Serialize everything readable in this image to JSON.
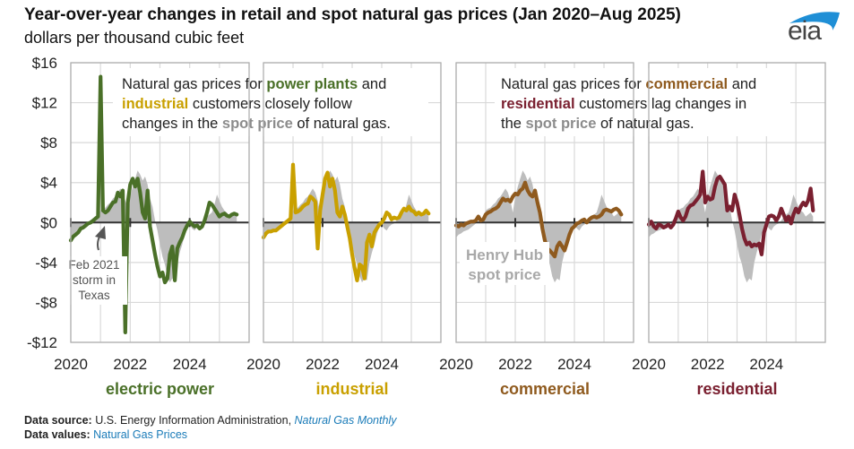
{
  "header": {
    "title": "Year-over-year changes in retail and spot natural gas prices (Jan 2020–Aug 2025)",
    "subtitle": "dollars per thousand cubic feet",
    "logo_text": "eia"
  },
  "colors": {
    "electric_power": "#4a7028",
    "industrial": "#c9a000",
    "commercial": "#8f5a1e",
    "residential": "#7a2030",
    "spot_area": "#bdbdbd",
    "spot_label": "#a8a8a8",
    "grid": "#d9d9d9",
    "axis": "#333333",
    "link": "#1a7bb8"
  },
  "annotations": {
    "left_box": {
      "line1_pre": "Natural gas prices for ",
      "line1_em": "power plants",
      "line1_post": " and",
      "line2_em": "industrial",
      "line2_post": " customers closely follow",
      "line3_pre": "changes in the ",
      "line3_em": "spot price",
      "line3_post": " of natural gas."
    },
    "right_box": {
      "line1_pre": "Natural gas prices for ",
      "line1_em": "commercial",
      "line1_post": " and",
      "line2_em": "residential",
      "line2_post": " customers lag changes in",
      "line3_pre": "the ",
      "line3_em": "spot price",
      "line3_post": " of natural gas."
    },
    "storm": [
      "Feb 2021",
      "storm in",
      "Texas"
    ],
    "spot_label": [
      "Henry Hub",
      "spot price"
    ]
  },
  "footer": {
    "source_label": "Data source:",
    "source_text": " U.S. Energy Information Administration, ",
    "source_link": "Natural Gas Monthly",
    "values_label": "Data values:",
    "values_link": "Natural Gas Prices"
  },
  "chart_data": {
    "type": "line",
    "title": "Year-over-year changes in retail and spot natural gas prices (Jan 2020–Aug 2025)",
    "ylabel": "dollars per thousand cubic feet",
    "ylim": [
      -12,
      16
    ],
    "yticks": [
      16,
      12,
      8,
      4,
      0,
      -4,
      -8,
      -12
    ],
    "ytick_labels": [
      "$16",
      "$12",
      "$8",
      "$4",
      "$0",
      "-$4",
      "-$8",
      "-$12"
    ],
    "xlim": [
      "2020-01",
      "2025-08"
    ],
    "xticks": [
      2020,
      2022,
      2024
    ],
    "xtick_labels": [
      "2020",
      "2022",
      "2024"
    ],
    "grid": true,
    "start_month": "2020-01",
    "months": 68,
    "spot_series": {
      "name": "Henry Hub spot price",
      "values": [
        -1.5,
        -1.2,
        -1.1,
        -0.9,
        -0.8,
        -0.7,
        -0.5,
        -0.3,
        -0.1,
        0.1,
        0.3,
        0.6,
        1.2,
        1.4,
        1.5,
        1.8,
        2.0,
        2.4,
        2.6,
        3.0,
        3.4,
        3.0,
        2.2,
        1.0,
        2.6,
        3.6,
        4.4,
        5.2,
        4.8,
        4.2,
        4.6,
        3.8,
        2.4,
        1.6,
        0.2,
        -0.8,
        -2.2,
        -3.4,
        -4.2,
        -5.4,
        -6.0,
        -5.6,
        -5.8,
        -4.0,
        -3.0,
        -2.2,
        -1.2,
        -0.4,
        -0.2,
        -0.6,
        -0.8,
        -0.4,
        -0.2,
        -0.1,
        0.2,
        0.6,
        0.8,
        1.0,
        1.8,
        2.8,
        2.2,
        1.6,
        1.2,
        1.0,
        0.6,
        0.8,
        1.0,
        0.6
      ]
    },
    "series": [
      {
        "name": "electric power",
        "color": "#4a7028",
        "values": [
          -1.8,
          -1.4,
          -1.2,
          -1.0,
          -0.6,
          -0.5,
          -0.3,
          -0.1,
          0.0,
          0.2,
          0.4,
          0.6,
          14.6,
          1.2,
          1.0,
          1.2,
          1.6,
          2.0,
          2.1,
          3.0,
          2.6,
          3.2,
          -11.0,
          2.0,
          3.8,
          4.4,
          3.6,
          4.4,
          3.0,
          1.0,
          0.4,
          3.2,
          -0.4,
          -1.8,
          -3.2,
          -4.4,
          -5.4,
          -5.0,
          -6.0,
          -5.6,
          -3.2,
          -2.4,
          -5.8,
          -2.6,
          -2.0,
          -1.5,
          -0.8,
          -0.3,
          0.1,
          -0.2,
          -0.4,
          -0.3,
          -0.6,
          -0.4,
          0.2,
          1.0,
          2.0,
          1.8,
          1.4,
          1.0,
          0.6,
          0.8,
          0.9,
          0.7,
          0.6,
          0.8,
          0.9,
          0.8
        ]
      },
      {
        "name": "industrial",
        "color": "#c9a000",
        "values": [
          -1.5,
          -1.1,
          -0.9,
          -0.9,
          -0.8,
          -0.8,
          -0.6,
          -0.4,
          -0.2,
          0.0,
          0.2,
          0.4,
          5.8,
          1.0,
          1.1,
          1.3,
          1.6,
          1.8,
          1.9,
          2.6,
          2.4,
          2.1,
          -2.6,
          1.2,
          2.8,
          4.4,
          5.0,
          3.6,
          4.4,
          3.2,
          1.0,
          0.6,
          1.6,
          0.8,
          -0.4,
          -1.6,
          -3.2,
          -4.6,
          -5.8,
          -4.2,
          -4.4,
          -5.6,
          -2.0,
          -1.2,
          -2.4,
          -1.0,
          -0.6,
          -0.2,
          0.0,
          0.4,
          1.0,
          0.8,
          0.3,
          0.5,
          0.4,
          0.5,
          1.0,
          1.4,
          1.2,
          1.6,
          1.2,
          1.1,
          0.8,
          1.0,
          0.8,
          0.9,
          1.2,
          0.9
        ]
      },
      {
        "name": "commercial",
        "color": "#8f5a1e",
        "values": [
          -0.3,
          -0.4,
          -0.2,
          -0.3,
          -0.1,
          0.0,
          0.1,
          0.1,
          0.2,
          0.6,
          0.2,
          0.3,
          0.8,
          1.0,
          1.1,
          1.3,
          1.4,
          1.6,
          2.0,
          2.4,
          2.2,
          2.3,
          2.1,
          2.6,
          2.9,
          2.8,
          3.2,
          3.4,
          4.0,
          3.2,
          2.8,
          2.6,
          3.2,
          2.0,
          1.0,
          -0.6,
          -1.8,
          -2.6,
          -2.8,
          -3.1,
          -3.4,
          -2.4,
          -2.0,
          -2.4,
          -2.8,
          -2.0,
          -1.2,
          -0.6,
          -0.4,
          -0.1,
          0.0,
          0.2,
          0.3,
          0.0,
          0.3,
          0.5,
          0.6,
          0.5,
          0.6,
          0.8,
          1.2,
          1.3,
          1.2,
          1.1,
          1.3,
          1.4,
          1.2,
          0.8
        ]
      },
      {
        "name": "residential",
        "color": "#7a2030",
        "values": [
          -0.2,
          0.1,
          -0.4,
          -0.6,
          -0.2,
          -0.3,
          -0.5,
          -0.4,
          -0.2,
          -0.5,
          -0.2,
          0.4,
          1.1,
          0.5,
          0.2,
          0.6,
          1.4,
          1.7,
          1.8,
          2.1,
          2.4,
          2.8,
          5.1,
          2.0,
          2.6,
          2.3,
          2.4,
          3.6,
          4.4,
          4.6,
          4.2,
          3.8,
          1.2,
          1.6,
          1.2,
          2.8,
          2.0,
          0.8,
          -0.6,
          -1.6,
          -2.2,
          -2.0,
          -2.4,
          -2.2,
          -2.3,
          -2.1,
          -3.2,
          -1.0,
          -0.2,
          0.6,
          0.7,
          0.6,
          0.2,
          0.6,
          1.4,
          0.8,
          0.2,
          0.6,
          -0.1,
          0.8,
          1.4,
          1.0,
          1.6,
          2.0,
          1.7,
          2.2,
          3.4,
          1.2
        ]
      }
    ],
    "panel_labels": [
      "electric power",
      "industrial",
      "commercial",
      "residential"
    ],
    "annotations": [
      "Feb 2021 storm in Texas",
      "Henry Hub spot price"
    ],
    "legend": "none (panel labels below each panel)"
  }
}
